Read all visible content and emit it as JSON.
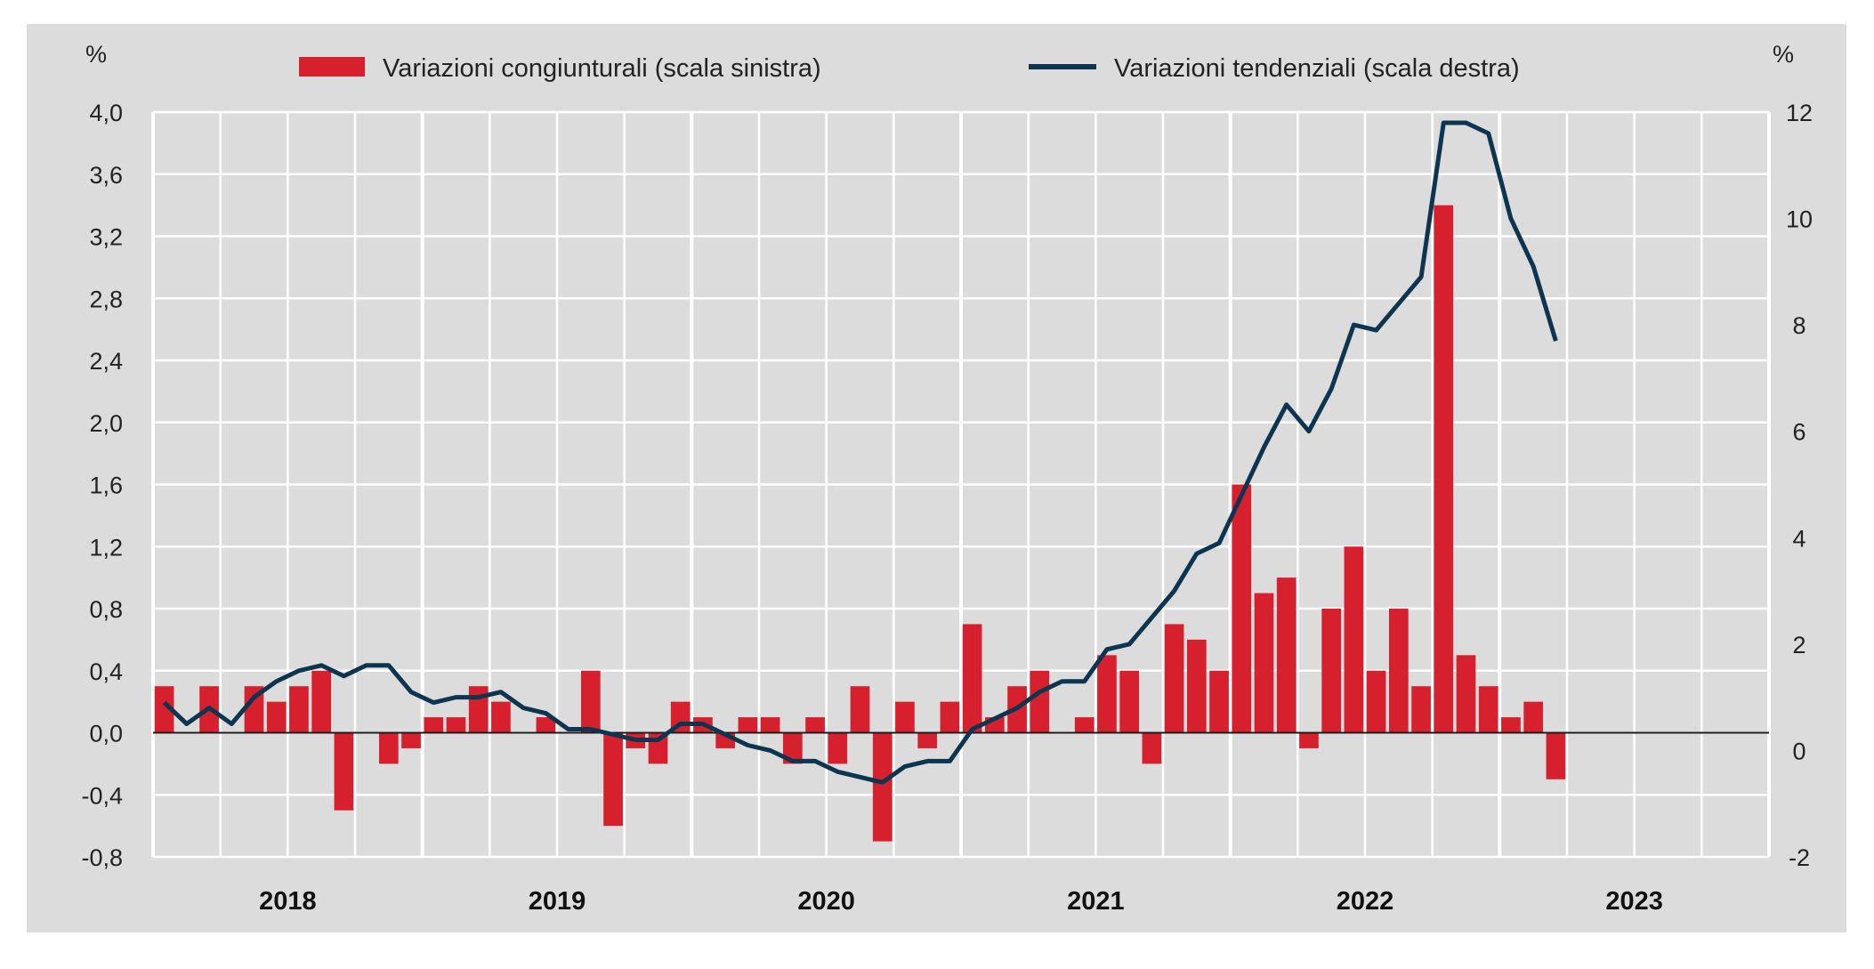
{
  "chart_data": {
    "type": "bar+line",
    "title": "",
    "legend": {
      "placement": "top-center",
      "bar_label": "Variazioni congiunturali (scala sinistra)",
      "line_label": "Variazioni tendenziali (scala destra)"
    },
    "left_axis": {
      "unit": "%",
      "ylim": [
        -0.8,
        4.0
      ],
      "ticks": [
        "4,0",
        "3,6",
        "3,2",
        "2,8",
        "2,4",
        "2,0",
        "1,6",
        "1,2",
        "0,8",
        "0,4",
        "0,0",
        "-0,4",
        "-0,8"
      ]
    },
    "right_axis": {
      "unit": "%",
      "ylim": [
        -2,
        12
      ],
      "ticks": [
        "12",
        "10",
        "8",
        "6",
        "4",
        "2",
        "0",
        "-2"
      ]
    },
    "years": [
      "2018",
      "2019",
      "2020",
      "2021",
      "2022",
      "2023"
    ],
    "months_per_year": 12,
    "grid": true,
    "colors": {
      "bars": "#d7202e",
      "line": "#0e3550",
      "background": "#dcdcdc",
      "grid": "#ffffff"
    },
    "series": [
      {
        "name": "Variazioni congiunturali (scala sinistra)",
        "axis": "left",
        "type": "bar",
        "values": [
          0.3,
          0.0,
          0.3,
          0.0,
          0.3,
          0.2,
          0.3,
          0.4,
          -0.5,
          0.0,
          -0.2,
          -0.1,
          0.1,
          0.1,
          0.3,
          0.2,
          0.0,
          0.1,
          0.0,
          0.4,
          -0.6,
          -0.1,
          -0.2,
          0.2,
          0.1,
          -0.1,
          0.1,
          0.1,
          -0.2,
          0.1,
          -0.2,
          0.3,
          -0.7,
          0.2,
          -0.1,
          0.2,
          0.7,
          0.1,
          0.3,
          0.4,
          0.0,
          0.1,
          0.5,
          0.4,
          -0.2,
          0.7,
          0.6,
          0.4,
          1.6,
          0.9,
          1.0,
          -0.1,
          0.8,
          1.2,
          0.4,
          0.8,
          0.3,
          3.4,
          0.5,
          0.3,
          0.1,
          0.2,
          -0.3
        ]
      },
      {
        "name": "Variazioni tendenziali (scala destra)",
        "axis": "right",
        "type": "line",
        "values": [
          0.9,
          0.5,
          0.8,
          0.5,
          1.0,
          1.3,
          1.5,
          1.6,
          1.4,
          1.6,
          1.6,
          1.1,
          0.9,
          1.0,
          1.0,
          1.1,
          0.8,
          0.7,
          0.4,
          0.4,
          0.3,
          0.2,
          0.2,
          0.5,
          0.5,
          0.3,
          0.1,
          0.0,
          -0.2,
          -0.2,
          -0.4,
          -0.5,
          -0.6,
          -0.3,
          -0.2,
          -0.2,
          0.4,
          0.6,
          0.8,
          1.1,
          1.3,
          1.3,
          1.9,
          2.0,
          2.5,
          3.0,
          3.7,
          3.9,
          4.8,
          5.7,
          6.5,
          6.0,
          6.8,
          8.0,
          7.9,
          8.4,
          8.9,
          11.8,
          11.8,
          11.6,
          10.0,
          9.1,
          7.7
        ]
      }
    ]
  }
}
